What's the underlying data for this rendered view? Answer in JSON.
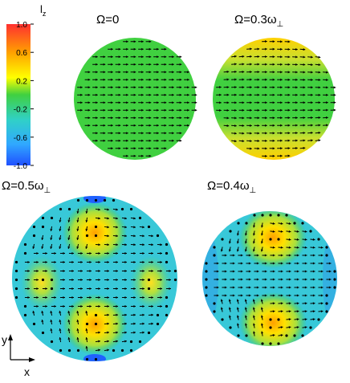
{
  "colorbar": {
    "label": "l",
    "label_sub": "z",
    "ticks": [
      "1.0",
      "0.6",
      "0.2",
      "-0.2",
      "-0.6",
      "-1.0"
    ],
    "tick_values": [
      1.0,
      0.6,
      0.2,
      -0.2,
      -0.6,
      -1.0
    ],
    "range": [
      -1.0,
      1.0
    ],
    "colors": [
      "#ff3030",
      "#ffa000",
      "#ffff00",
      "#30d030",
      "#30d0c8",
      "#30a0ff",
      "#2060ff"
    ]
  },
  "panels": [
    {
      "title": "Ω=0",
      "background": "#40d040",
      "pattern": "uniform",
      "arrow_dir": "right"
    },
    {
      "title": "Ω=0.3ω",
      "title_sub": "⊥",
      "background": "#40d040",
      "pattern": "edge-caps",
      "arrow_dir": "right"
    },
    {
      "title": "Ω=0.5ω",
      "title_sub": "⊥",
      "background": "#38c8d8",
      "pattern": "four-lobes",
      "arrow_dir": "mixed"
    },
    {
      "title": "Ω=0.4ω",
      "title_sub": "⊥",
      "background": "#38c8d8",
      "pattern": "two-lobes",
      "arrow_dir": "mixed"
    }
  ],
  "axes": {
    "y": "y",
    "x": "x"
  }
}
